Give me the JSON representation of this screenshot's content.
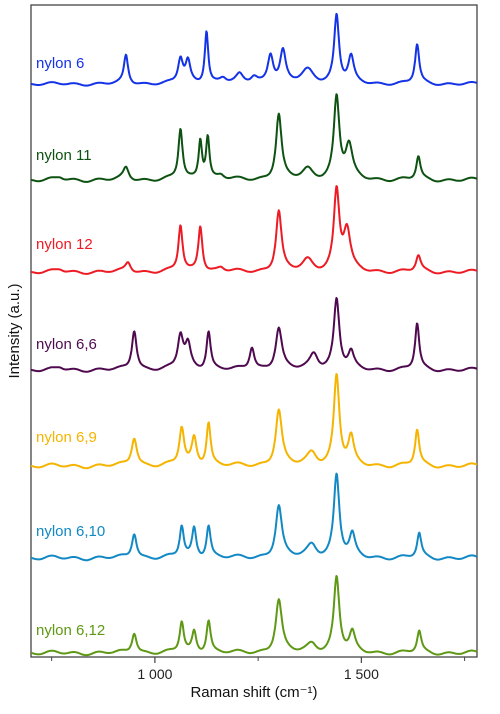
{
  "chart_data": {
    "type": "line",
    "title": "",
    "xlabel": "Raman shift (cm⁻¹)",
    "ylabel": "Intensity (a.u.)",
    "xlim": [
      700,
      1780
    ],
    "xticks": [
      1000,
      1500
    ],
    "xtick_labels": [
      "1 000",
      "1 500"
    ],
    "minor_xticks": [
      750,
      1250,
      1750
    ],
    "yticks": "none",
    "grid": false,
    "legend": "none",
    "series": [
      {
        "name": "nylon 6",
        "color": "#1433e6",
        "baseline": 0,
        "peaks": [
          [
            930,
            0.42,
            6
          ],
          [
            1062,
            0.36,
            7
          ],
          [
            1080,
            0.32,
            7
          ],
          [
            1125,
            0.78,
            5
          ],
          [
            1165,
            0.08,
            10
          ],
          [
            1205,
            0.12,
            10
          ],
          [
            1240,
            0.1,
            10
          ],
          [
            1280,
            0.42,
            8
          ],
          [
            1310,
            0.46,
            8
          ],
          [
            1370,
            0.2,
            18
          ],
          [
            1440,
            1.0,
            7
          ],
          [
            1475,
            0.38,
            8
          ],
          [
            1635,
            0.58,
            6
          ]
        ]
      },
      {
        "name": "nylon 11",
        "color": "#0e5212",
        "baseline": 0,
        "peaks": [
          [
            770,
            0.03,
            10
          ],
          [
            930,
            0.15,
            8
          ],
          [
            1062,
            0.62,
            6
          ],
          [
            1110,
            0.48,
            5
          ],
          [
            1128,
            0.52,
            5
          ],
          [
            1160,
            0.05,
            10
          ],
          [
            1300,
            0.8,
            8
          ],
          [
            1370,
            0.12,
            15
          ],
          [
            1440,
            1.0,
            8
          ],
          [
            1470,
            0.4,
            10
          ],
          [
            1638,
            0.28,
            6
          ]
        ]
      },
      {
        "name": "nylon 12",
        "color": "#ec1b24",
        "baseline": 0,
        "peaks": [
          [
            770,
            0.03,
            10
          ],
          [
            935,
            0.12,
            8
          ],
          [
            1062,
            0.58,
            6
          ],
          [
            1110,
            0.58,
            6
          ],
          [
            1160,
            0.05,
            10
          ],
          [
            1300,
            0.76,
            8
          ],
          [
            1370,
            0.14,
            15
          ],
          [
            1440,
            1.0,
            8
          ],
          [
            1465,
            0.5,
            10
          ],
          [
            1638,
            0.2,
            7
          ]
        ]
      },
      {
        "name": "nylon 6,6",
        "color": "#4f0a4f",
        "baseline": 0,
        "peaks": [
          [
            770,
            0.03,
            10
          ],
          [
            950,
            0.5,
            7
          ],
          [
            1062,
            0.42,
            8
          ],
          [
            1080,
            0.3,
            8
          ],
          [
            1130,
            0.48,
            6
          ],
          [
            1235,
            0.28,
            7
          ],
          [
            1300,
            0.52,
            9
          ],
          [
            1385,
            0.2,
            12
          ],
          [
            1440,
            0.88,
            8
          ],
          [
            1475,
            0.2,
            8
          ],
          [
            1635,
            0.58,
            6
          ]
        ]
      },
      {
        "name": "nylon 6,9",
        "color": "#f5b400",
        "baseline": 0,
        "peaks": [
          [
            950,
            0.32,
            8
          ],
          [
            1065,
            0.42,
            7
          ],
          [
            1095,
            0.3,
            7
          ],
          [
            1130,
            0.48,
            6
          ],
          [
            1300,
            0.62,
            9
          ],
          [
            1380,
            0.14,
            14
          ],
          [
            1440,
            1.0,
            8
          ],
          [
            1475,
            0.3,
            8
          ],
          [
            1635,
            0.4,
            6
          ]
        ]
      },
      {
        "name": "nylon 6,10",
        "color": "#1288c4",
        "baseline": 0,
        "peaks": [
          [
            950,
            0.28,
            7
          ],
          [
            1065,
            0.35,
            6
          ],
          [
            1095,
            0.32,
            6
          ],
          [
            1130,
            0.36,
            6
          ],
          [
            1300,
            0.58,
            9
          ],
          [
            1380,
            0.14,
            14
          ],
          [
            1440,
            0.92,
            8
          ],
          [
            1478,
            0.24,
            8
          ],
          [
            1640,
            0.27,
            6
          ]
        ]
      },
      {
        "name": "nylon 6,12",
        "color": "#5e9814",
        "baseline": 0,
        "peaks": [
          [
            950,
            0.24,
            7
          ],
          [
            1065,
            0.36,
            6
          ],
          [
            1095,
            0.24,
            6
          ],
          [
            1130,
            0.38,
            6
          ],
          [
            1300,
            0.62,
            9
          ],
          [
            1380,
            0.1,
            14
          ],
          [
            1440,
            0.88,
            8
          ],
          [
            1478,
            0.22,
            8
          ],
          [
            1640,
            0.25,
            6
          ]
        ]
      }
    ]
  }
}
